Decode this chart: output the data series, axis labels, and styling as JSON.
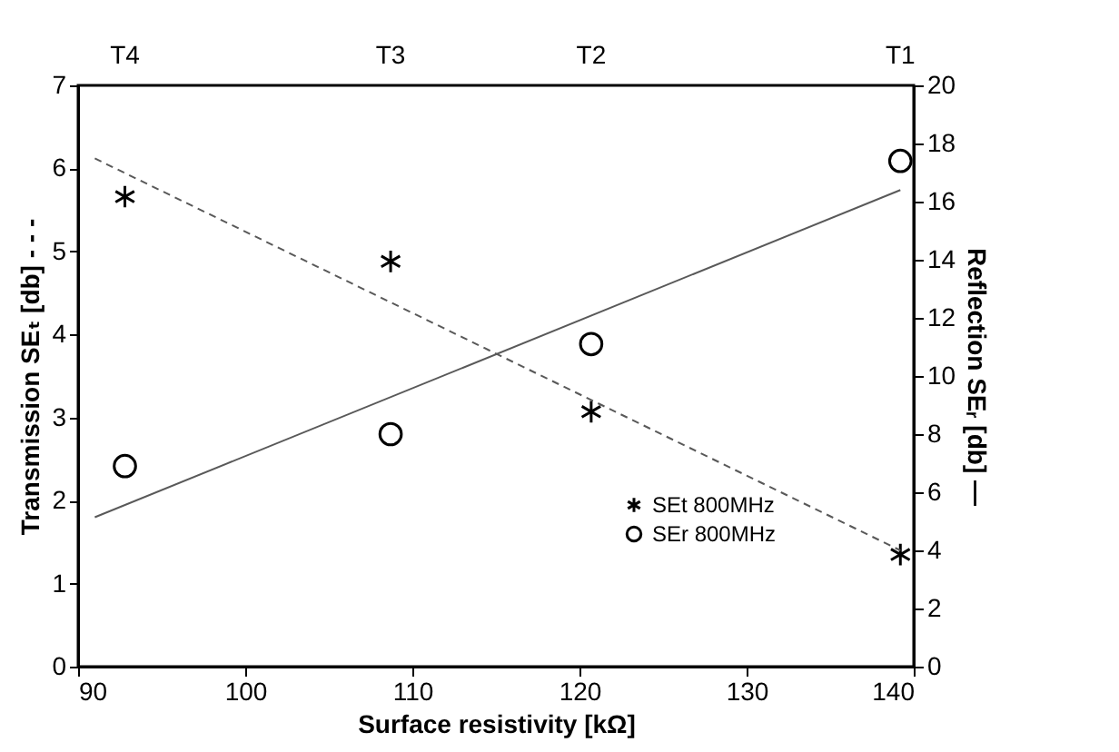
{
  "chart_data": {
    "type": "scatter",
    "xlabel": "Surface resistivity  [kΩ]",
    "ylabel": "Transmission  SEₜ [db] - - -",
    "y2label": "Reflection SEᵣ [db] —",
    "xlim": [
      90,
      140
    ],
    "xticks": [
      90,
      100,
      110,
      120,
      130,
      140
    ],
    "ylim": [
      0,
      7
    ],
    "yticks": [
      0,
      1,
      2,
      3,
      4,
      5,
      6,
      7
    ],
    "y2lim": [
      0,
      20
    ],
    "y2ticks": [
      0,
      2,
      4,
      6,
      8,
      10,
      12,
      14,
      16,
      18,
      20
    ],
    "annotations": [
      "T4",
      "T3",
      "T2",
      "T1"
    ],
    "legend": "bottom",
    "grid": false,
    "series": [
      {
        "name": "SEt 800MHz",
        "color": "#000000",
        "marker": "cross",
        "x": [
          92.8,
          108.7,
          120.7,
          139.2
        ],
        "values": [
          5.66,
          4.88,
          3.07,
          1.35
        ]
      },
      {
        "name": "SEr 800MHz",
        "color": "#000000",
        "marker": "circle",
        "axis": "y2",
        "x": [
          92.8,
          108.7,
          120.7,
          139.2
        ],
        "values": [
          6.9,
          8.0,
          11.1,
          17.4
        ]
      },
      {
        "type": "line",
        "color": "#595959",
        "marker": "none",
        "line_style": "dashed",
        "x": [
          91,
          139.2
        ],
        "values": [
          6.12,
          1.4
        ]
      },
      {
        "type": "line",
        "color": "#595959",
        "marker": "none",
        "line_style": "solid",
        "axis": "y2",
        "x": [
          91,
          139.2
        ],
        "values": [
          5.14,
          16.4
        ]
      }
    ]
  }
}
